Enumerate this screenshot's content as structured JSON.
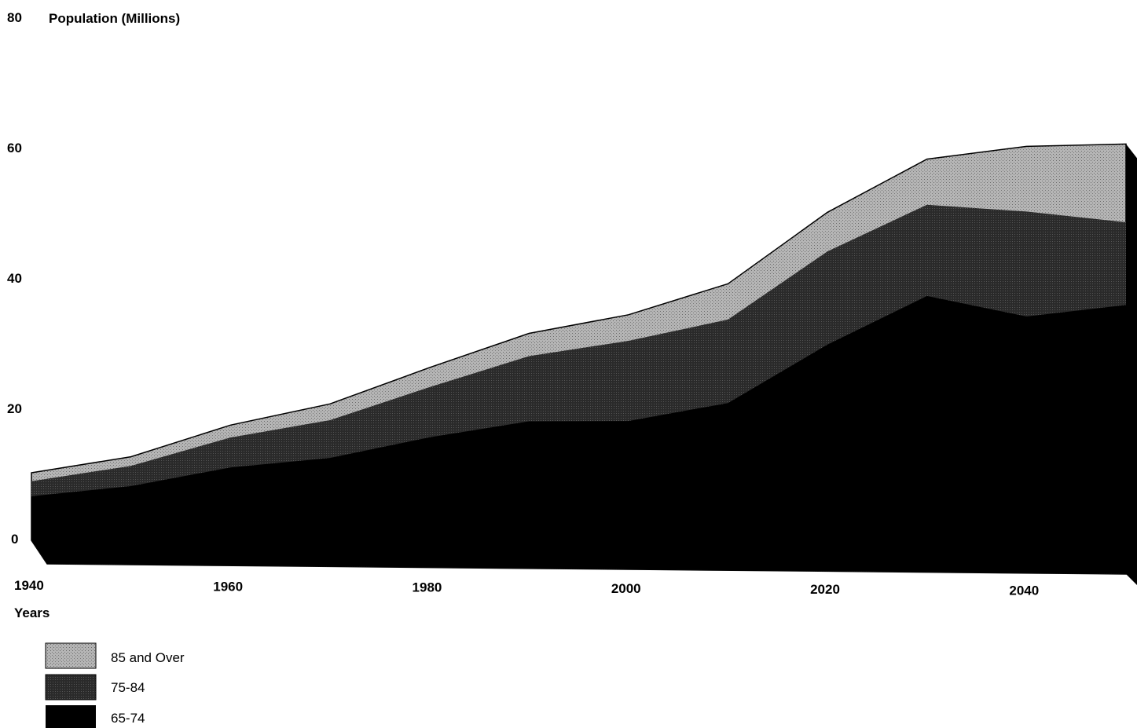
{
  "chart_data": {
    "type": "area",
    "stacked": true,
    "ylabel": "Population (Millions)",
    "xlabel": "Years",
    "ylim": [
      0,
      80
    ],
    "xlim": [
      1940,
      2050
    ],
    "y_ticks": [
      0,
      20,
      40,
      60,
      80
    ],
    "x_ticks": [
      1940,
      1960,
      1980,
      2000,
      2020,
      2040
    ],
    "x": [
      1940,
      1950,
      1960,
      1970,
      1980,
      1990,
      2000,
      2010,
      2020,
      2030,
      2040,
      2050
    ],
    "series": [
      {
        "name": "65-74",
        "color": "#000000",
        "values": [
          6.4,
          8.0,
          10.9,
          12.4,
          15.6,
          18.1,
          18.2,
          21.0,
          30.0,
          37.5,
          34.4,
          36.2
        ]
      },
      {
        "name": "75-84",
        "color": "#111111",
        "values": [
          2.3,
          3.1,
          4.6,
          5.8,
          7.7,
          10.0,
          12.3,
          12.8,
          14.3,
          14.0,
          16.1,
          12.7
        ]
      },
      {
        "name": "85 and Over",
        "color": "#9a9a9a",
        "values": [
          1.3,
          1.4,
          1.9,
          2.5,
          3.0,
          3.5,
          4.0,
          5.5,
          6.0,
          7.0,
          10.0,
          12.0
        ]
      }
    ],
    "grid": false,
    "legend_position": "bottom-left"
  }
}
